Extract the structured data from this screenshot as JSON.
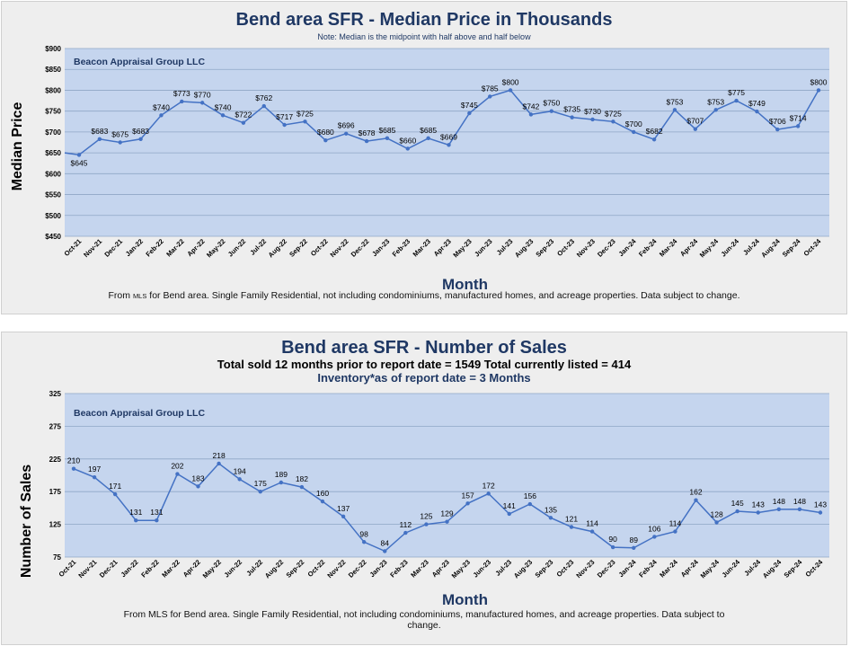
{
  "charts": [
    {
      "title": "Bend area SFR - Median Price in Thousands",
      "note": "Note: Median is the midpoint with half above and half below",
      "watermark": "Beacon Appraisal Group LLC",
      "footer_pre": "From ",
      "footer_small": "MLS",
      "footer_post": " for Bend area.  Single Family Residential, not including condominiums, manufactured homes, and acreage properties.  Data subject to change."
    },
    {
      "title": "Bend area SFR - Number of Sales",
      "subtitle": "Total sold 12 months prior to report date = 1549 Total currently listed =  414",
      "subtitle2": "Inventory*as of report date = 3  Months",
      "watermark": "Beacon Appraisal Group LLC",
      "footer_line1": "From MLS for Bend area.  Single Family Residential, not including condominiums, manufactured homes, and acreage properties.  Data subject to",
      "footer_line2": "change."
    }
  ],
  "chart_data": [
    {
      "type": "line",
      "title": "Bend area SFR - Median Price in Thousands",
      "xlabel": "Month",
      "ylabel": "Median Price",
      "ylim": [
        450,
        900
      ],
      "yticks": [
        "$450",
        "$500",
        "$550",
        "$600",
        "$650",
        "$700",
        "$750",
        "$800",
        "$850",
        "$900"
      ],
      "ytick_values": [
        450,
        500,
        550,
        600,
        650,
        700,
        750,
        800,
        850,
        900
      ],
      "grid": true,
      "categories": [
        "Oct-21",
        "Nov-21",
        "Dec-21",
        "Jan-22",
        "Feb-22",
        "Mar-22",
        "Apr-22",
        "May-22",
        "Jun-22",
        "Jul-22",
        "Aug-22",
        "Sep-22",
        "Oct-22",
        "Nov-22",
        "Dec-22",
        "Jan-23",
        "Feb-23",
        "Mar-23",
        "Apr-23",
        "May-23",
        "Jun-23",
        "Jul-23",
        "Aug-23",
        "Sep-23",
        "Oct-23",
        "Nov-23",
        "Dec-23",
        "Jan-24",
        "Feb-24",
        "Mar-24",
        "Apr-24",
        "May-24",
        "Jun-24",
        "Jul-24",
        "Aug-24",
        "Sep-24",
        "Oct-24"
      ],
      "values": [
        645,
        683,
        675,
        683,
        740,
        773,
        770,
        740,
        722,
        762,
        717,
        725,
        680,
        696,
        678,
        685,
        660,
        685,
        669,
        745,
        785,
        800,
        742,
        750,
        735,
        730,
        725,
        700,
        682,
        753,
        707,
        753,
        775,
        749,
        706,
        714,
        800
      ],
      "leading_value": 650,
      "labels": [
        "$645",
        "$683",
        "$675",
        "$683",
        "$740",
        "$773",
        "$770",
        "$740",
        "$722",
        "$762",
        "$717",
        "$725",
        "$680",
        "$696",
        "$678",
        "$685",
        "$660",
        "$685",
        "$669",
        "$745",
        "$785",
        "$800",
        "$742",
        "$750",
        "$735",
        "$730",
        "$725",
        "$700",
        "$682",
        "$753",
        "$707",
        "$753",
        "$775",
        "$749",
        "$706",
        "$714",
        "$800"
      ],
      "label_below": [
        0
      ],
      "line_color": "#4472c4",
      "plot_bg": "#c5d5ee"
    },
    {
      "type": "line",
      "title": "Bend area SFR - Number of Sales",
      "xlabel": "Month",
      "ylabel": "Number of Sales",
      "ylim": [
        75,
        325
      ],
      "yticks": [
        "75",
        "125",
        "175",
        "225",
        "275",
        "325"
      ],
      "ytick_values": [
        75,
        125,
        175,
        225,
        275,
        325
      ],
      "grid": true,
      "categories": [
        "Oct-21",
        "Nov-21",
        "Dec-21",
        "Jan-22",
        "Feb-22",
        "Mar-22",
        "Apr-22",
        "May-22",
        "Jun-22",
        "Jul-22",
        "Aug-22",
        "Sep-22",
        "Oct-22",
        "Nov-22",
        "Dec-22",
        "Jan-23",
        "Feb-23",
        "Mar-23",
        "Apr-23",
        "May-23",
        "Jun-23",
        "Jul-23",
        "Aug-23",
        "Sep-23",
        "Oct-23",
        "Nov-23",
        "Dec-23",
        "Jan-24",
        "Feb-24",
        "Mar-24",
        "Apr-24",
        "May-24",
        "Jun-24",
        "Jul-24",
        "Aug-24",
        "Sep-24",
        "Oct-24"
      ],
      "values": [
        210,
        197,
        171,
        131,
        131,
        202,
        183,
        218,
        194,
        175,
        189,
        182,
        160,
        137,
        98,
        84,
        112,
        125,
        129,
        157,
        172,
        141,
        156,
        135,
        121,
        114,
        90,
        89,
        106,
        114,
        162,
        128,
        145,
        143,
        148,
        148,
        143
      ],
      "labels": [
        "210",
        "197",
        "171",
        "131",
        "131",
        "202",
        "183",
        "218",
        "194",
        "175",
        "189",
        "182",
        "160",
        "137",
        "98",
        "84",
        "112",
        "125",
        "129",
        "157",
        "172",
        "141",
        "156",
        "135",
        "121",
        "114",
        "90",
        "89",
        "106",
        "114",
        "162",
        "128",
        "145",
        "143",
        "148",
        "148",
        "143"
      ],
      "label_below": [],
      "line_color": "#4472c4",
      "plot_bg": "#c5d5ee"
    }
  ]
}
